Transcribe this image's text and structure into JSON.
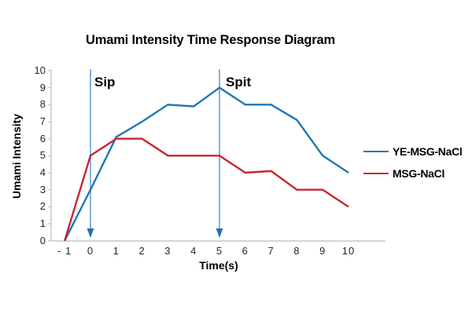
{
  "chart_data": {
    "type": "line",
    "title": "Umami Intensity Time Response Diagram",
    "xlabel": "Time(s)",
    "ylabel": "Umami Intensity",
    "x": [
      -1,
      0,
      1,
      2,
      3,
      4,
      5,
      6,
      7,
      8,
      9,
      10
    ],
    "x_tick_labels": [
      "- 1",
      "0",
      "1",
      "2",
      "3",
      "4",
      "5",
      "6",
      "7",
      "8",
      "9",
      "10"
    ],
    "y_ticks": [
      0,
      1,
      2,
      3,
      4,
      5,
      6,
      7,
      8,
      9,
      10
    ],
    "ylim": [
      0,
      10
    ],
    "grid": "off",
    "legend_position": "right",
    "series": [
      {
        "name": "YE-MSG-NaCl",
        "color": "#1F77B4",
        "values": [
          0,
          3,
          6.1,
          7,
          8,
          7.9,
          9,
          8,
          8,
          7.1,
          5,
          4
        ]
      },
      {
        "name": "MSG-NaCl",
        "color": "#C5272D",
        "values": [
          0,
          5,
          6,
          6,
          5,
          5,
          5,
          4,
          4.1,
          3,
          3,
          2
        ]
      }
    ],
    "annotations": [
      {
        "label": "Sip",
        "x": 0,
        "arrow": "down"
      },
      {
        "label": "Spit",
        "x": 5,
        "arrow": "down"
      }
    ],
    "colors": {
      "axis": "#C6C6C6",
      "tick_text": "#262626",
      "arrow_shaft": "#85B3DC",
      "arrow_head": "#2272B6"
    }
  }
}
